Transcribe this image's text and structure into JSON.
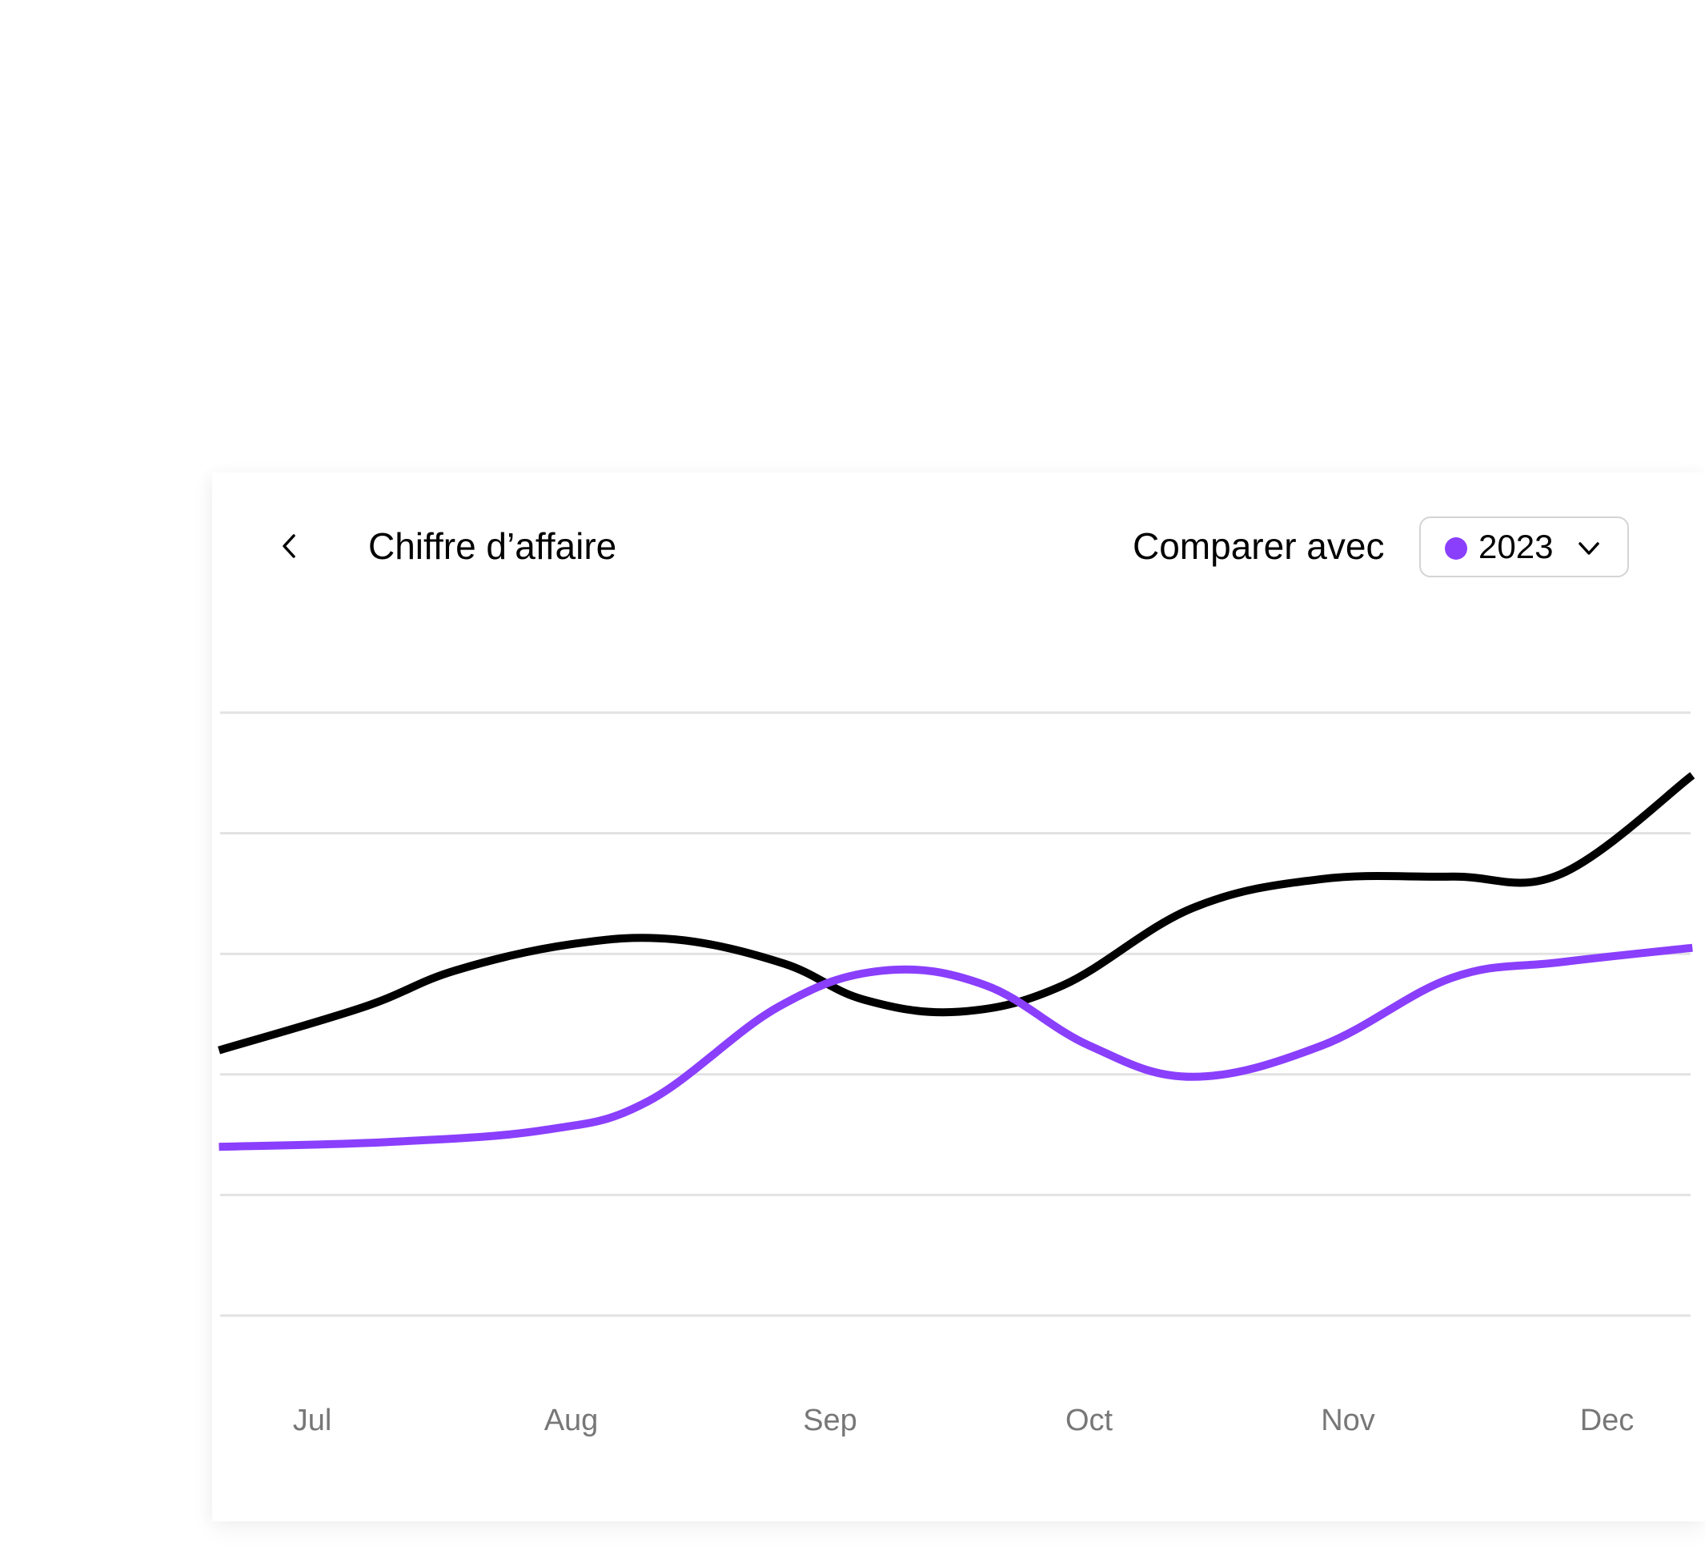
{
  "header": {
    "back_icon": "chevron-left-icon",
    "title": "Chiffre d’affaire",
    "compare_label": "Comparer avec",
    "compare_select": {
      "value": "2023",
      "dot_color": "#8a3ffc",
      "chevron_icon": "chevron-down-icon"
    }
  },
  "chart_data": {
    "type": "line",
    "categories": [
      "Jul",
      "Aug",
      "Sep",
      "Oct",
      "Nov",
      "Dec"
    ],
    "grid": true,
    "gridlines": 6,
    "ylim": [
      0,
      5
    ],
    "series": [
      {
        "color": "#000000",
        "x": [
          -0.36,
          0.2,
          0.55,
          1.0,
          1.4,
          1.82,
          2.13,
          2.5,
          2.9,
          3.4,
          3.9,
          4.4,
          4.82,
          5.33
        ],
        "y": [
          2.2,
          2.56,
          2.86,
          3.08,
          3.12,
          2.92,
          2.62,
          2.52,
          2.74,
          3.38,
          3.62,
          3.64,
          3.66,
          4.48
        ]
      },
      {
        "name": "2023",
        "color": "#8a3ffc",
        "x": [
          -0.36,
          0.3,
          0.9,
          1.3,
          1.8,
          2.2,
          2.6,
          3.0,
          3.4,
          3.9,
          4.4,
          4.82,
          5.33
        ],
        "y": [
          1.4,
          1.44,
          1.54,
          1.78,
          2.56,
          2.86,
          2.74,
          2.24,
          1.98,
          2.24,
          2.8,
          2.93,
          3.05
        ]
      }
    ]
  }
}
